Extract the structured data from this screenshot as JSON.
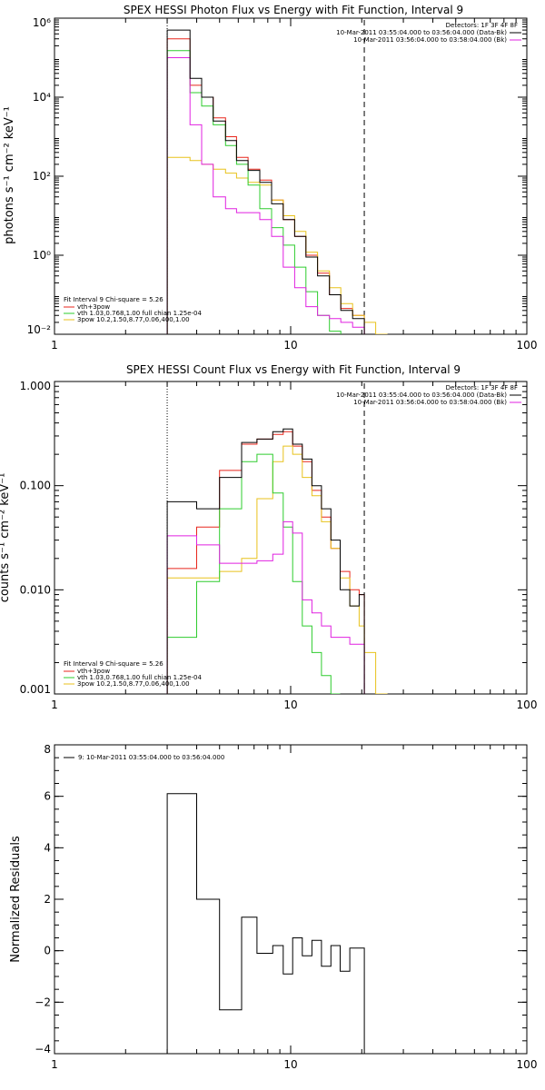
{
  "colors": {
    "data_bk": "#000000",
    "vth_3pow": "#e8261c",
    "vth": "#2ecc2e",
    "three_pow": "#e8c21c",
    "background": "#e021e0"
  },
  "chart_data": [
    {
      "type": "line",
      "step": true,
      "log_x": true,
      "log_y": true,
      "title": "SPEX HESSI Photon Flux vs Energy with Fit Function, Interval 9",
      "ylabel": "photons s⁻¹ cm⁻² keV⁻¹",
      "xlabel": "",
      "xlim": [
        1,
        100
      ],
      "ylim": [
        0.01,
        1000000
      ],
      "xticks": [
        "1",
        "10",
        "100"
      ],
      "yticks": [
        "10⁻²",
        "10⁰",
        "10²",
        "10⁴",
        "10⁶"
      ],
      "vlines": [
        {
          "x": 3,
          "style": "dotted"
        },
        {
          "x": 20.5,
          "style": "dashed"
        }
      ],
      "legend_upper": {
        "header": "Detectors: 1F 3F 4F 8F",
        "lines": [
          "10-Mar-2011 03:55:04.000 to 03:56:04.000 (Data-Bk)",
          "10-Mar-2011 03:56:04.000 to 03:58:04.000 (Bk)"
        ]
      },
      "legend_lower": {
        "header": "Fit Interval 9    Chi-square = 5.26",
        "lines": [
          "vth+3pow",
          "vth 1.03,0.768,1.00  full chian 1.25e-04",
          "3pow 10.2,1.50,8.77,0.06,400,1.00"
        ]
      },
      "edges": [
        3.0,
        3.35,
        3.75,
        4.2,
        4.7,
        5.3,
        5.9,
        6.6,
        7.4,
        8.3,
        9.3,
        10.4,
        11.6,
        13.0,
        14.6,
        16.3,
        18.3,
        20.5,
        22.9,
        25.7
      ],
      "series": [
        {
          "name": "data_bk",
          "color_key": "data_bk",
          "values": [
            500000,
            500000,
            30000,
            10000,
            2500,
            800,
            250,
            140,
            70,
            20,
            8,
            3,
            0.9,
            0.3,
            0.1,
            0.04,
            0.025,
            null,
            null
          ]
        },
        {
          "name": "vth+3pow",
          "color_key": "vth_3pow",
          "values": [
            300000,
            300000,
            20000,
            10000,
            3000,
            1000,
            300,
            150,
            80,
            25,
            8,
            3,
            1,
            0.35,
            0.1,
            0.045,
            0.03,
            null,
            null
          ]
        },
        {
          "name": "vth",
          "color_key": "vth",
          "values": [
            150000,
            150000,
            13000,
            6000,
            2000,
            600,
            200,
            60,
            15,
            5,
            1.8,
            0.5,
            0.12,
            0.03,
            0.012,
            null,
            null,
            null,
            null
          ]
        },
        {
          "name": "3pow",
          "color_key": "three_pow",
          "values": [
            300,
            300,
            250,
            200,
            150,
            120,
            90,
            70,
            60,
            25,
            10,
            4,
            1.2,
            0.4,
            0.15,
            0.06,
            0.03,
            0.02,
            0.01
          ]
        },
        {
          "name": "bk",
          "color_key": "background",
          "values": [
            100000,
            100000,
            2000,
            200,
            30,
            15,
            12,
            12,
            8,
            3,
            0.5,
            0.15,
            0.05,
            0.03,
            0.025,
            0.02,
            0.015,
            null,
            null
          ]
        }
      ]
    },
    {
      "type": "line",
      "step": true,
      "log_x": true,
      "log_y": true,
      "title": "SPEX HESSI Count Flux vs Energy with Fit Function, Interval 9",
      "ylabel": "counts s⁻¹ cm⁻² keV⁻¹",
      "xlabel": "",
      "xlim": [
        1,
        100
      ],
      "ylim": [
        0.001,
        1.0
      ],
      "xticks": [
        "1",
        "10",
        "100"
      ],
      "yticks": [
        "0.001",
        "0.010",
        "0.100",
        "1.000"
      ],
      "vlines": [
        {
          "x": 3,
          "style": "dotted"
        },
        {
          "x": 20.5,
          "style": "dashed"
        }
      ],
      "legend_upper": {
        "header": "Detectors: 1F 3F 4F 8F",
        "lines": [
          "10-Mar-2011 03:55:04.000 to 03:56:04.000 (Data-Bk)",
          "10-Mar-2011 03:56:04.000 to 03:58:04.000 (Bk)"
        ]
      },
      "legend_lower": {
        "header": "Fit Interval 9    Chi-square = 5.26",
        "lines": [
          "vth+3pow",
          "vth 1.03,0.768,1.00  full chian 1.25e-04",
          "3pow 10.2,1.50,8.77,0.06,400,1.00"
        ]
      },
      "edges": [
        3.0,
        4.0,
        5.0,
        6.2,
        7.2,
        8.4,
        9.3,
        10.2,
        11.2,
        12.3,
        13.5,
        14.8,
        16.2,
        17.8,
        19.5,
        20.5,
        22.9,
        25.7
      ],
      "series": [
        {
          "name": "data_bk",
          "color_key": "data_bk",
          "values": [
            0.07,
            0.06,
            0.12,
            0.26,
            0.28,
            0.33,
            0.35,
            0.25,
            0.18,
            0.1,
            0.06,
            0.03,
            0.01,
            0.007,
            0.009,
            null,
            null
          ]
        },
        {
          "name": "vth+3pow",
          "color_key": "vth_3pow",
          "values": [
            0.016,
            0.04,
            0.14,
            0.25,
            0.28,
            0.31,
            0.33,
            0.24,
            0.17,
            0.09,
            0.05,
            0.025,
            0.015,
            0.01,
            0.009,
            null,
            null
          ]
        },
        {
          "name": "vth",
          "color_key": "vth",
          "values": [
            0.0035,
            0.012,
            0.06,
            0.17,
            0.2,
            0.085,
            0.04,
            0.012,
            0.0045,
            0.0025,
            0.0015,
            0.001,
            null,
            null,
            null,
            null,
            null
          ]
        },
        {
          "name": "3pow",
          "color_key": "three_pow",
          "values": [
            0.013,
            0.013,
            0.015,
            0.02,
            0.075,
            0.17,
            0.24,
            0.2,
            0.12,
            0.08,
            0.045,
            0.025,
            0.013,
            0.007,
            0.0045,
            0.0025,
            0.001
          ]
        },
        {
          "name": "bk",
          "color_key": "background",
          "values": [
            0.033,
            0.027,
            0.018,
            0.018,
            0.019,
            0.022,
            0.045,
            0.035,
            0.008,
            0.006,
            0.0045,
            0.0035,
            0.0035,
            0.003,
            0.003,
            null,
            null
          ]
        }
      ]
    },
    {
      "type": "line",
      "step": true,
      "log_x": true,
      "log_y": false,
      "title": "",
      "ylabel": "Normalized Residuals",
      "xlabel": "",
      "xlim": [
        1,
        100
      ],
      "ylim": [
        -4,
        8
      ],
      "xticks": [
        "1",
        "10",
        "100"
      ],
      "yticks": [
        "−4",
        "−2",
        "0",
        "2",
        "4",
        "6",
        "8"
      ],
      "legend": {
        "entry": "9: 10-Mar-2011 03:55:04.000 to 03:56:04.000"
      },
      "edges": [
        3.0,
        4.0,
        5.0,
        6.2,
        7.2,
        8.4,
        9.3,
        10.2,
        11.2,
        12.3,
        13.5,
        14.8,
        16.2,
        17.8,
        19.5,
        20.5
      ],
      "series": [
        {
          "name": "residuals",
          "color_key": "data_bk",
          "values": [
            6.1,
            2.0,
            -2.3,
            1.3,
            -0.1,
            0.2,
            -0.9,
            0.5,
            -0.2,
            0.4,
            -0.6,
            0.2,
            -0.8,
            0.1,
            0.1
          ]
        }
      ]
    }
  ]
}
